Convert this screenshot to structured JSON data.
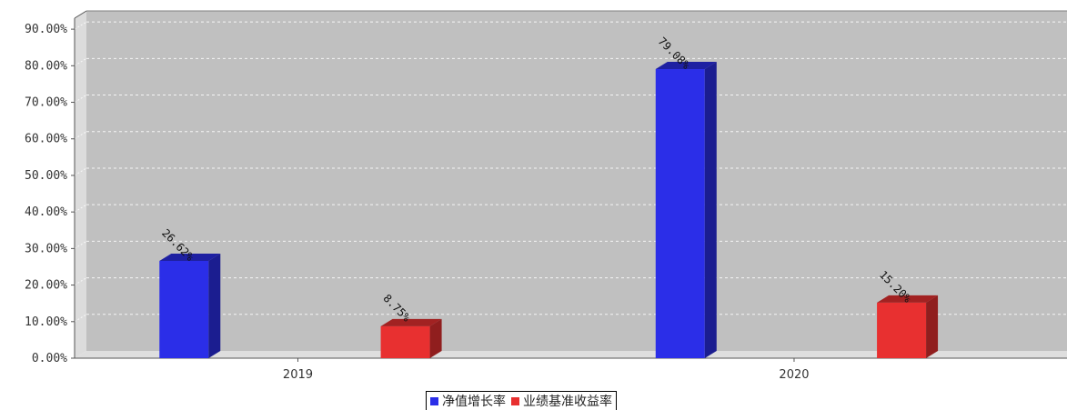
{
  "chart_data": {
    "type": "bar",
    "categories": [
      "2019",
      "2020"
    ],
    "series": [
      {
        "name": "净值增长率",
        "values": [
          26.62,
          79.08
        ],
        "labels": [
          "26.62%",
          "79.08%"
        ],
        "color": "#2b2ee8"
      },
      {
        "name": "业绩基准收益率",
        "values": [
          8.75,
          15.2
        ],
        "labels": [
          "8.75%",
          "15.20%"
        ],
        "color": "#e83030"
      }
    ],
    "ylim": [
      0,
      95
    ],
    "yticks": [
      "0.00%",
      "10.00%",
      "20.00%",
      "30.00%",
      "40.00%",
      "50.00%",
      "60.00%",
      "70.00%",
      "80.00%",
      "90.00%"
    ],
    "ytick_values": [
      0,
      10,
      20,
      30,
      40,
      50,
      60,
      70,
      80,
      90
    ],
    "grid": true,
    "legend_placement": "bottom-center",
    "plot_background": "#c0c0c0"
  }
}
